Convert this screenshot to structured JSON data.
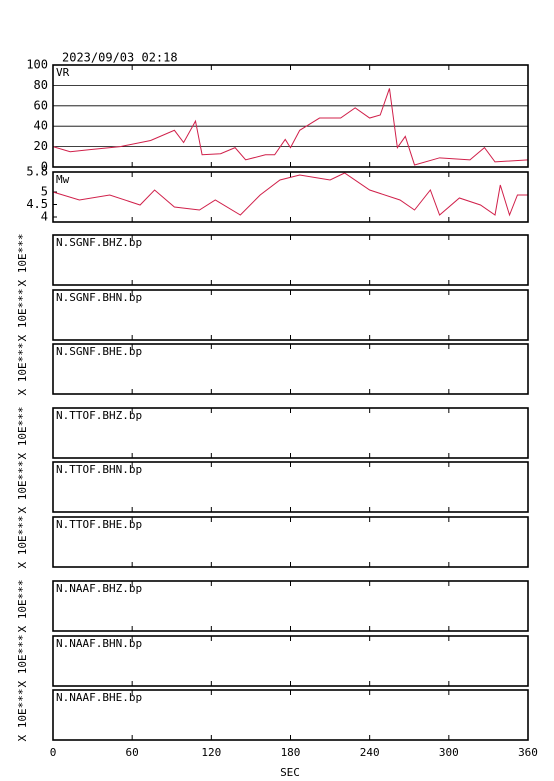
{
  "chart_data": {
    "title": "2023/09/03  02:18",
    "xlabel": "SEC",
    "xlim": [
      0,
      360
    ],
    "xticks": [
      0,
      60,
      120,
      180,
      240,
      300,
      360
    ],
    "panels": [
      {
        "type": "line",
        "label": "VR",
        "ylim": [
          0,
          100
        ],
        "yticks": [
          0,
          20,
          40,
          60,
          80,
          100
        ],
        "grid": true,
        "series": [
          {
            "color": "#d0204a",
            "x": [
              0,
              13,
              28,
              51,
              74,
              92,
              99,
              108,
              113,
              127,
              138,
              146,
              161,
              168,
              176,
              180,
              187,
              202,
              218,
              229,
              240,
              248,
              255,
              261,
              267,
              274,
              293,
              316,
              327,
              335,
              360
            ],
            "values": [
              20,
              15,
              17,
              20,
              26,
              36,
              24,
              45,
              12,
              13,
              19,
              7,
              12,
              12,
              27,
              19,
              36,
              48,
              48,
              58,
              48,
              51,
              77,
              19,
              30,
              2,
              9,
              7,
              19,
              5,
              7
            ]
          }
        ]
      },
      {
        "type": "line",
        "label": "Mw",
        "ylim": [
          3.8,
          5.8
        ],
        "yticks": [
          4.0,
          4.5,
          5.0,
          5.8
        ],
        "grid": false,
        "series": [
          {
            "color": "#d0204a",
            "x": [
              0,
              20,
              43,
              66,
              77,
              92,
              111,
              123,
              142,
              157,
              172,
              187,
              210,
              221,
              240,
              263,
              274,
              286,
              293,
              308,
              324,
              335,
              339,
              346,
              352,
              360
            ],
            "values": [
              5.0,
              4.68,
              4.88,
              4.48,
              5.08,
              4.4,
              4.28,
              4.68,
              4.08,
              4.88,
              5.48,
              5.68,
              5.48,
              5.76,
              5.08,
              4.68,
              4.28,
              5.08,
              4.08,
              4.76,
              4.48,
              4.08,
              5.28,
              4.08,
              4.88,
              4.88
            ]
          }
        ]
      },
      {
        "type": "line",
        "label": "N.SGNF.BHZ.bp",
        "ylabel": "X 10E***"
      },
      {
        "type": "line",
        "label": "N.SGNF.BHN.bp",
        "ylabel": "X 10E***"
      },
      {
        "type": "line",
        "label": "N.SGNF.BHE.bp",
        "ylabel": "X 10E***"
      },
      {
        "type": "line",
        "label": "N.TTOF.BHZ.bp",
        "ylabel": "X 10E***"
      },
      {
        "type": "line",
        "label": "N.TTOF.BHN.bp",
        "ylabel": "X 10E***"
      },
      {
        "type": "line",
        "label": "N.TTOF.BHE.bp",
        "ylabel": "X 10E***"
      },
      {
        "type": "line",
        "label": "N.NAAF.BHZ.bp",
        "ylabel": "X 10E***"
      },
      {
        "type": "line",
        "label": "N.NAAF.BHN.bp",
        "ylabel": "X 10E***"
      },
      {
        "type": "line",
        "label": "N.NAAF.BHE.bp",
        "ylabel": "X 10E***"
      }
    ]
  }
}
